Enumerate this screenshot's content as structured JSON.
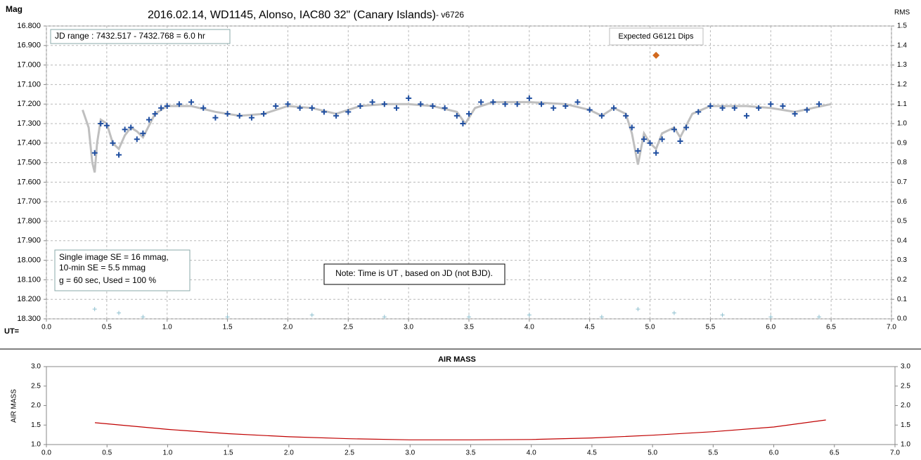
{
  "chart_data": [
    {
      "type": "scatter",
      "title": "2016.02.14,  WD1145, Alonso,  IAC80 32\" (Canary Islands)",
      "subtitle": " - v6726",
      "y_label": "Mag",
      "y2_label": "RMS",
      "x_label": "UT=",
      "annotations": [
        "JD range  : 7432.517 - 7432.768  = 6.0 hr",
        "Expected G6121 Dips",
        "Single image SE = 16 mmag,",
        "10-min SE = 5.5 mmag",
        "g = 60 sec, Used = 100  %",
        "Note: Time is UT , based on JD (not BJD)."
      ],
      "grid": true,
      "xlim": [
        0,
        7
      ],
      "xticks": [
        {
          "value": 0,
          "label": "0.0"
        },
        0.5,
        {
          "value": 1,
          "label": "1.0"
        },
        1.5,
        {
          "value": 2,
          "label": "2.0"
        },
        2.5,
        {
          "value": 3,
          "label": "3.0"
        },
        3.5,
        {
          "value": 4,
          "label": "4.0"
        },
        4.5,
        {
          "value": 5,
          "label": "5.0"
        },
        5.5,
        {
          "value": 6,
          "label": "6.0"
        },
        6.5,
        {
          "value": 7,
          "label": "7.0"
        }
      ],
      "ylim": [
        18.3,
        16.8
      ],
      "yticks": [
        {
          "value": 16.8,
          "label": "16.800"
        },
        {
          "value": 16.9,
          "label": "16.900"
        },
        {
          "value": 17.0,
          "label": "17.000"
        },
        {
          "value": 17.1,
          "label": "17.100"
        },
        {
          "value": 17.2,
          "label": "17.200"
        },
        {
          "value": 17.3,
          "label": "17.300"
        },
        {
          "value": 17.4,
          "label": "17.400"
        },
        {
          "value": 17.5,
          "label": "17.500"
        },
        {
          "value": 17.6,
          "label": "17.600"
        },
        {
          "value": 17.7,
          "label": "17.700"
        },
        {
          "value": 17.8,
          "label": "17.800"
        },
        {
          "value": 17.9,
          "label": "17.900"
        },
        {
          "value": 18.0,
          "label": "18.000"
        },
        {
          "value": 18.1,
          "label": "18.100"
        },
        {
          "value": 18.2,
          "label": "18.200"
        },
        {
          "value": 18.3,
          "label": "18.300"
        }
      ],
      "y2lim": [
        0,
        1.5
      ],
      "y2ticks": [
        {
          "value": 0,
          "label": "0.0"
        },
        0.1,
        0.2,
        0.3,
        0.4,
        0.5,
        0.6,
        0.7,
        0.8,
        0.9,
        {
          "value": 1,
          "label": "1.0"
        },
        1.1,
        1.2,
        1.3,
        1.4,
        1.5
      ],
      "series": [
        {
          "type": "line",
          "color": "#bfbfbf",
          "x": [
            0.3,
            0.35,
            0.38,
            0.4,
            0.42,
            0.45,
            0.5,
            0.55,
            0.6,
            0.65,
            0.7,
            0.75,
            0.8,
            0.9,
            1.0,
            1.2,
            1.4,
            1.6,
            1.8,
            2.0,
            2.2,
            2.4,
            2.6,
            2.8,
            3.0,
            3.2,
            3.4,
            3.47,
            3.55,
            3.7,
            4.0,
            4.3,
            4.5,
            4.6,
            4.7,
            4.8,
            4.85,
            4.9,
            4.95,
            5.0,
            5.05,
            5.1,
            5.2,
            5.25,
            5.35,
            5.5,
            5.8,
            6.0,
            6.2,
            6.5
          ],
          "values": [
            17.23,
            17.32,
            17.5,
            17.55,
            17.4,
            17.28,
            17.3,
            17.4,
            17.43,
            17.36,
            17.32,
            17.34,
            17.37,
            17.25,
            17.21,
            17.21,
            17.24,
            17.26,
            17.25,
            17.21,
            17.22,
            17.25,
            17.21,
            17.2,
            17.2,
            17.21,
            17.24,
            17.3,
            17.22,
            17.19,
            17.19,
            17.2,
            17.23,
            17.26,
            17.22,
            17.25,
            17.35,
            17.51,
            17.35,
            17.4,
            17.43,
            17.35,
            17.32,
            17.37,
            17.25,
            17.21,
            17.21,
            17.22,
            17.24,
            17.2
          ]
        },
        {
          "type": "scatter",
          "color": "#1f4ea0",
          "x": [
            0.4,
            0.45,
            0.5,
            0.55,
            0.6,
            0.65,
            0.7,
            0.75,
            0.8,
            0.85,
            0.9,
            0.95,
            1.0,
            1.1,
            1.2,
            1.3,
            1.4,
            1.5,
            1.6,
            1.7,
            1.8,
            1.9,
            2.0,
            2.1,
            2.2,
            2.3,
            2.4,
            2.5,
            2.6,
            2.7,
            2.8,
            2.9,
            3.0,
            3.1,
            3.2,
            3.3,
            3.4,
            3.45,
            3.5,
            3.6,
            3.7,
            3.8,
            3.9,
            4.0,
            4.1,
            4.2,
            4.3,
            4.4,
            4.5,
            4.6,
            4.7,
            4.8,
            4.85,
            4.9,
            4.95,
            5.0,
            5.05,
            5.1,
            5.2,
            5.25,
            5.3,
            5.4,
            5.5,
            5.6,
            5.7,
            5.8,
            5.9,
            6.0,
            6.1,
            6.2,
            6.3,
            6.4
          ],
          "values": [
            17.45,
            17.3,
            17.31,
            17.4,
            17.46,
            17.33,
            17.32,
            17.38,
            17.35,
            17.28,
            17.25,
            17.22,
            17.21,
            17.2,
            17.19,
            17.22,
            17.27,
            17.25,
            17.26,
            17.27,
            17.25,
            17.21,
            17.2,
            17.22,
            17.22,
            17.24,
            17.26,
            17.24,
            17.21,
            17.19,
            17.2,
            17.22,
            17.17,
            17.2,
            17.21,
            17.22,
            17.26,
            17.3,
            17.25,
            17.19,
            17.19,
            17.2,
            17.2,
            17.17,
            17.2,
            17.22,
            17.21,
            17.19,
            17.23,
            17.26,
            17.22,
            17.26,
            17.32,
            17.44,
            17.38,
            17.4,
            17.45,
            17.38,
            17.33,
            17.39,
            17.32,
            17.24,
            17.21,
            17.22,
            17.22,
            17.26,
            17.22,
            17.2,
            17.21,
            17.25,
            17.23,
            17.2
          ]
        },
        {
          "type": "scatter",
          "axis": "y2",
          "color": "#8fc0cf",
          "x": [
            0.4,
            0.6,
            0.8,
            1.5,
            2.2,
            2.8,
            3.5,
            4.0,
            4.6,
            4.9,
            5.2,
            5.6,
            6.0,
            6.4
          ],
          "values": [
            0.05,
            0.03,
            0.01,
            0.01,
            0.02,
            0.01,
            0.01,
            0.02,
            0.01,
            0.05,
            0.03,
            0.02,
            0.01,
            0.01
          ]
        },
        {
          "type": "diamond",
          "color": "#d2691e",
          "x": [
            5.05
          ],
          "values": [
            16.95
          ]
        }
      ]
    },
    {
      "type": "line",
      "title": "AIR MASS",
      "y_label": "AIR MASS",
      "grid": false,
      "xlim": [
        0,
        7
      ],
      "xticks": [
        {
          "value": 0,
          "label": "0.0"
        },
        0.5,
        {
          "value": 1,
          "label": "1.0"
        },
        1.5,
        {
          "value": 2,
          "label": "2.0"
        },
        2.5,
        {
          "value": 3,
          "label": "3.0"
        },
        3.5,
        {
          "value": 4,
          "label": "4.0"
        },
        4.5,
        {
          "value": 5,
          "label": "5.0"
        },
        5.5,
        {
          "value": 6,
          "label": "6.0"
        },
        6.5,
        {
          "value": 7,
          "label": "7.0"
        }
      ],
      "ylim": [
        1,
        3
      ],
      "yticks": [
        {
          "value": 1,
          "label": "1.0"
        },
        1.5,
        {
          "value": 2,
          "label": "2.0"
        },
        2.5,
        {
          "value": 3,
          "label": "3.0"
        }
      ],
      "y2lim": [
        1,
        3
      ],
      "y2ticks": [
        {
          "value": 1,
          "label": "1.0"
        },
        1.5,
        {
          "value": 2,
          "label": "2.0"
        },
        2.5,
        {
          "value": 3,
          "label": "3.0"
        }
      ],
      "series": [
        {
          "type": "line",
          "color": "#c00000",
          "x": [
            0.4,
            1.0,
            1.5,
            2.0,
            2.5,
            3.0,
            3.5,
            4.0,
            4.5,
            5.0,
            5.5,
            6.0,
            6.43
          ],
          "values": [
            1.56,
            1.39,
            1.28,
            1.2,
            1.15,
            1.12,
            1.12,
            1.13,
            1.17,
            1.24,
            1.33,
            1.45,
            1.63
          ]
        }
      ]
    }
  ]
}
